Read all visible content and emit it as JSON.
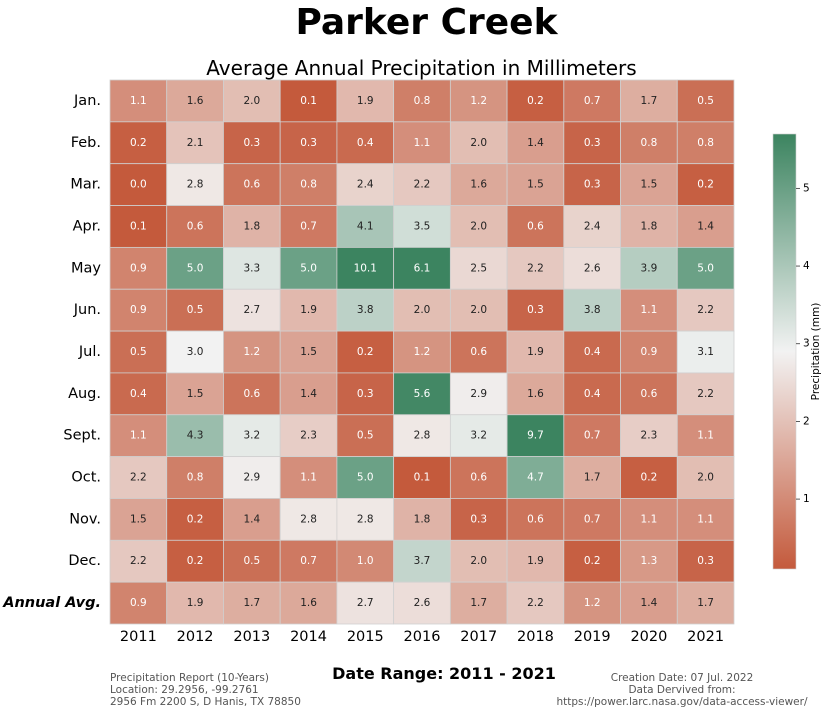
{
  "title": "Parker Creek",
  "chart_data": {
    "type": "heatmap",
    "title": "Average Annual Precipitation in Millimeters",
    "rows": [
      "Jan.",
      "Feb.",
      "Mar.",
      "Apr.",
      "May",
      "Jun.",
      "Jul.",
      "Aug.",
      "Sept.",
      "Oct.",
      "Nov.",
      "Dec.",
      "Annual Avg."
    ],
    "columns": [
      "2011",
      "2012",
      "2013",
      "2014",
      "2015",
      "2016",
      "2017",
      "2018",
      "2019",
      "2020",
      "2021"
    ],
    "values": [
      [
        1.1,
        1.6,
        2.0,
        0.1,
        1.9,
        0.8,
        1.2,
        0.2,
        0.7,
        1.7,
        0.5
      ],
      [
        0.2,
        2.1,
        0.3,
        0.3,
        0.4,
        1.1,
        2.0,
        1.4,
        0.3,
        0.8,
        0.8
      ],
      [
        0.0,
        2.8,
        0.6,
        0.8,
        2.4,
        2.2,
        1.6,
        1.5,
        0.3,
        1.5,
        0.2
      ],
      [
        0.1,
        0.6,
        1.8,
        0.7,
        4.1,
        3.5,
        2.0,
        0.6,
        2.4,
        1.8,
        1.4
      ],
      [
        0.9,
        5.0,
        3.3,
        5.0,
        10.1,
        6.1,
        2.5,
        2.2,
        2.6,
        3.9,
        5.0
      ],
      [
        0.9,
        0.5,
        2.7,
        1.9,
        3.8,
        2.0,
        2.0,
        0.3,
        3.8,
        1.1,
        2.2
      ],
      [
        0.5,
        3.0,
        1.2,
        1.5,
        0.2,
        1.2,
        0.6,
        1.9,
        0.4,
        0.9,
        3.1
      ],
      [
        0.4,
        1.5,
        0.6,
        1.4,
        0.3,
        5.6,
        2.9,
        1.6,
        0.4,
        0.6,
        2.2
      ],
      [
        1.1,
        4.3,
        3.2,
        2.3,
        0.5,
        2.8,
        3.2,
        9.7,
        0.7,
        2.3,
        1.1
      ],
      [
        2.2,
        0.8,
        2.9,
        1.1,
        5.0,
        0.1,
        0.6,
        4.7,
        1.7,
        0.2,
        2.0
      ],
      [
        1.5,
        0.2,
        1.4,
        2.8,
        2.8,
        1.8,
        0.3,
        0.6,
        0.7,
        1.1,
        1.1
      ],
      [
        2.2,
        0.2,
        0.5,
        0.7,
        1.0,
        3.7,
        2.0,
        1.9,
        0.2,
        1.3,
        0.3
      ],
      [
        0.9,
        1.9,
        1.7,
        1.6,
        2.7,
        2.6,
        1.7,
        2.2,
        1.2,
        1.4,
        1.7
      ]
    ],
    "color_scale": {
      "min": 0.1,
      "center": 3.0,
      "max": 5.7,
      "low_color": "#c45a3c",
      "mid_color": "#f2f2f2",
      "high_color": "#3c8460"
    },
    "colorbar": {
      "label": "Precipitation (mm)",
      "ticks": [
        "1",
        "2",
        "3",
        "4",
        "5"
      ]
    }
  },
  "footer": {
    "date_range": "Date Range: 2011 - 2021",
    "left_lines": [
      "Precipitation Report (10-Years)",
      "Location: 29.2956, -99.2761",
      "2956 Fm 2200 S, D Hanis, TX 78850"
    ],
    "right_lines": [
      "Creation Date: 07 Jul. 2022",
      "Data Dervived from:",
      "https://power.larc.nasa.gov/data-access-viewer/"
    ]
  }
}
